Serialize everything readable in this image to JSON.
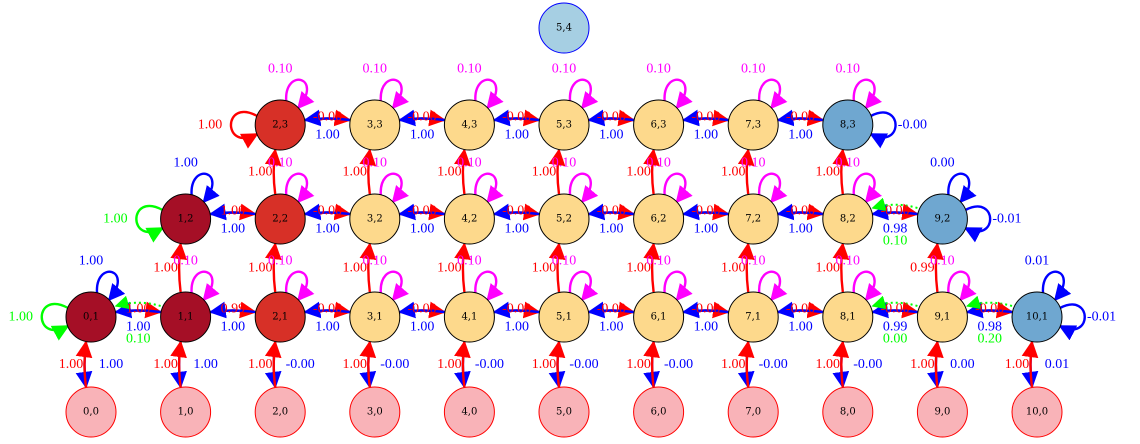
{
  "colors": {
    "dark_red": "#a50f26",
    "red": "#d73027",
    "orange": "#fdd98c",
    "pink": "#f9b3b8",
    "blue": "#6fa7d0",
    "light_blue": "#a6cfe3",
    "edge_red": "#ff0000",
    "edge_blue": "#0000ff",
    "edge_green": "#00ff00",
    "edge_magenta": "#ff00ff"
  },
  "nodes": [
    {
      "id": "5,4",
      "label": "5,4",
      "color": "light_blue",
      "stroke": "edge_blue"
    },
    {
      "id": "2,3",
      "label": "2,3",
      "color": "red"
    },
    {
      "id": "3,3",
      "label": "3,3",
      "color": "orange"
    },
    {
      "id": "4,3",
      "label": "4,3",
      "color": "orange"
    },
    {
      "id": "5,3",
      "label": "5,3",
      "color": "orange"
    },
    {
      "id": "6,3",
      "label": "6,3",
      "color": "orange"
    },
    {
      "id": "7,3",
      "label": "7,3",
      "color": "orange"
    },
    {
      "id": "8,3",
      "label": "8,3",
      "color": "blue"
    },
    {
      "id": "1,2",
      "label": "1,2",
      "color": "dark_red"
    },
    {
      "id": "2,2",
      "label": "2,2",
      "color": "red"
    },
    {
      "id": "3,2",
      "label": "3,2",
      "color": "orange"
    },
    {
      "id": "4,2",
      "label": "4,2",
      "color": "orange"
    },
    {
      "id": "5,2",
      "label": "5,2",
      "color": "orange"
    },
    {
      "id": "6,2",
      "label": "6,2",
      "color": "orange"
    },
    {
      "id": "7,2",
      "label": "7,2",
      "color": "orange"
    },
    {
      "id": "8,2",
      "label": "8,2",
      "color": "orange"
    },
    {
      "id": "9,2",
      "label": "9,2",
      "color": "blue"
    },
    {
      "id": "0,1",
      "label": "0,1",
      "color": "dark_red"
    },
    {
      "id": "1,1",
      "label": "1,1",
      "color": "dark_red"
    },
    {
      "id": "2,1",
      "label": "2,1",
      "color": "red"
    },
    {
      "id": "3,1",
      "label": "3,1",
      "color": "orange"
    },
    {
      "id": "4,1",
      "label": "4,1",
      "color": "orange"
    },
    {
      "id": "5,1",
      "label": "5,1",
      "color": "orange"
    },
    {
      "id": "6,1",
      "label": "6,1",
      "color": "orange"
    },
    {
      "id": "7,1",
      "label": "7,1",
      "color": "orange"
    },
    {
      "id": "8,1",
      "label": "8,1",
      "color": "orange"
    },
    {
      "id": "9,1",
      "label": "9,1",
      "color": "orange"
    },
    {
      "id": "10,1",
      "label": "10,1",
      "color": "blue"
    },
    {
      "id": "0,0",
      "label": "0,0",
      "color": "pink",
      "stroke": "edge_red"
    },
    {
      "id": "1,0",
      "label": "1,0",
      "color": "pink",
      "stroke": "edge_red"
    },
    {
      "id": "2,0",
      "label": "2,0",
      "color": "pink",
      "stroke": "edge_red"
    },
    {
      "id": "3,0",
      "label": "3,0",
      "color": "pink",
      "stroke": "edge_red"
    },
    {
      "id": "4,0",
      "label": "4,0",
      "color": "pink",
      "stroke": "edge_red"
    },
    {
      "id": "5,0",
      "label": "5,0",
      "color": "pink",
      "stroke": "edge_red"
    },
    {
      "id": "6,0",
      "label": "6,0",
      "color": "pink",
      "stroke": "edge_red"
    },
    {
      "id": "7,0",
      "label": "7,0",
      "color": "pink",
      "stroke": "edge_red"
    },
    {
      "id": "8,0",
      "label": "8,0",
      "color": "pink",
      "stroke": "edge_red"
    },
    {
      "id": "9,0",
      "label": "9,0",
      "color": "pink",
      "stroke": "edge_red"
    },
    {
      "id": "10,0",
      "label": "10,0",
      "color": "pink",
      "stroke": "edge_red"
    }
  ],
  "edges": [
    {
      "from": "2,3",
      "to": "3,3",
      "label": "-0.00",
      "color": "edge_red"
    },
    {
      "from": "3,3",
      "to": "4,3",
      "label": "-0.00",
      "color": "edge_red"
    },
    {
      "from": "4,3",
      "to": "5,3",
      "label": "-0.00",
      "color": "edge_red"
    },
    {
      "from": "5,3",
      "to": "6,3",
      "label": "-0.00",
      "color": "edge_red"
    },
    {
      "from": "6,3",
      "to": "7,3",
      "label": "-0.00",
      "color": "edge_red"
    },
    {
      "from": "7,3",
      "to": "8,3",
      "label": "-0.00",
      "color": "edge_red"
    },
    {
      "from": "3,3",
      "to": "2,3",
      "label": "1.00",
      "color": "edge_blue"
    },
    {
      "from": "4,3",
      "to": "3,3",
      "label": "1.00",
      "color": "edge_blue"
    },
    {
      "from": "5,3",
      "to": "4,3",
      "label": "1.00",
      "color": "edge_blue"
    },
    {
      "from": "6,3",
      "to": "5,3",
      "label": "1.00",
      "color": "edge_blue"
    },
    {
      "from": "7,3",
      "to": "6,3",
      "label": "1.00",
      "color": "edge_blue"
    },
    {
      "from": "8,3",
      "to": "7,3",
      "label": "1.00",
      "color": "edge_blue"
    },
    {
      "from": "1,2",
      "to": "2,2",
      "label": "1.00",
      "color": "edge_red"
    },
    {
      "from": "2,2",
      "to": "3,2",
      "label": "-0.00",
      "color": "edge_red"
    },
    {
      "from": "3,2",
      "to": "4,2",
      "label": "-0.00",
      "color": "edge_red"
    },
    {
      "from": "4,2",
      "to": "5,2",
      "label": "-0.00",
      "color": "edge_red"
    },
    {
      "from": "5,2",
      "to": "6,2",
      "label": "-0.00",
      "color": "edge_red"
    },
    {
      "from": "6,2",
      "to": "7,2",
      "label": "-0.00",
      "color": "edge_red"
    },
    {
      "from": "7,2",
      "to": "8,2",
      "label": "-0.00",
      "color": "edge_red"
    },
    {
      "from": "8,2",
      "to": "9,2",
      "label": "-0.00",
      "color": "edge_red"
    },
    {
      "from": "2,2",
      "to": "1,2",
      "label": "1.00",
      "color": "edge_blue"
    },
    {
      "from": "3,2",
      "to": "2,2",
      "label": "1.00",
      "color": "edge_blue"
    },
    {
      "from": "4,2",
      "to": "3,2",
      "label": "1.00",
      "color": "edge_blue"
    },
    {
      "from": "5,2",
      "to": "4,2",
      "label": "1.00",
      "color": "edge_blue"
    },
    {
      "from": "6,2",
      "to": "5,2",
      "label": "1.00",
      "color": "edge_blue"
    },
    {
      "from": "7,2",
      "to": "6,2",
      "label": "1.00",
      "color": "edge_blue"
    },
    {
      "from": "8,2",
      "to": "7,2",
      "label": "1.00",
      "color": "edge_blue"
    },
    {
      "from": "9,2",
      "to": "8,2",
      "label": "0.98",
      "color": "edge_blue"
    },
    {
      "from": "0,1",
      "to": "1,1",
      "label": "1.00",
      "color": "edge_red"
    },
    {
      "from": "1,1",
      "to": "2,1",
      "label": "0.99",
      "color": "edge_red"
    },
    {
      "from": "2,1",
      "to": "3,1",
      "label": "-0.00",
      "color": "edge_red"
    },
    {
      "from": "3,1",
      "to": "4,1",
      "label": "-0.00",
      "color": "edge_red"
    },
    {
      "from": "4,1",
      "to": "5,1",
      "label": "-0.00",
      "color": "edge_red"
    },
    {
      "from": "5,1",
      "to": "6,1",
      "label": "-0.00",
      "color": "edge_red"
    },
    {
      "from": "6,1",
      "to": "7,1",
      "label": "-0.00",
      "color": "edge_red"
    },
    {
      "from": "7,1",
      "to": "8,1",
      "label": "-0.00",
      "color": "edge_red"
    },
    {
      "from": "8,1",
      "to": "9,1",
      "label": "-0.00",
      "color": "edge_red"
    },
    {
      "from": "9,1",
      "to": "10,1",
      "label": "-0.00",
      "color": "edge_red"
    },
    {
      "from": "1,1",
      "to": "0,1",
      "label": "1.00",
      "color": "edge_blue"
    },
    {
      "from": "2,1",
      "to": "1,1",
      "label": "1.00",
      "color": "edge_blue"
    },
    {
      "from": "3,1",
      "to": "2,1",
      "label": "1.00",
      "color": "edge_blue"
    },
    {
      "from": "4,1",
      "to": "3,1",
      "label": "1.00",
      "color": "edge_blue"
    },
    {
      "from": "5,1",
      "to": "4,1",
      "label": "1.00",
      "color": "edge_blue"
    },
    {
      "from": "6,1",
      "to": "5,1",
      "label": "1.00",
      "color": "edge_blue"
    },
    {
      "from": "7,1",
      "to": "6,1",
      "label": "1.00",
      "color": "edge_blue"
    },
    {
      "from": "8,1",
      "to": "7,1",
      "label": "1.00",
      "color": "edge_blue"
    },
    {
      "from": "9,1",
      "to": "8,1",
      "label": "0.99",
      "color": "edge_blue"
    },
    {
      "from": "10,1",
      "to": "9,1",
      "label": "0.98",
      "color": "edge_blue"
    },
    {
      "from": "2,2",
      "to": "2,3",
      "label": "1.00",
      "color": "edge_red"
    },
    {
      "from": "3,2",
      "to": "3,3",
      "label": "1.00",
      "color": "edge_red"
    },
    {
      "from": "4,2",
      "to": "4,3",
      "label": "1.00",
      "color": "edge_red"
    },
    {
      "from": "5,2",
      "to": "5,3",
      "label": "1.00",
      "color": "edge_red"
    },
    {
      "from": "6,2",
      "to": "6,3",
      "label": "1.00",
      "color": "edge_red"
    },
    {
      "from": "7,2",
      "to": "7,3",
      "label": "1.00",
      "color": "edge_red"
    },
    {
      "from": "8,2",
      "to": "8,3",
      "label": "1.00",
      "color": "edge_red"
    },
    {
      "from": "1,1",
      "to": "1,2",
      "label": "1.00",
      "color": "edge_red"
    },
    {
      "from": "2,1",
      "to": "2,2",
      "label": "1.00",
      "color": "edge_red"
    },
    {
      "from": "3,1",
      "to": "3,2",
      "label": "1.00",
      "color": "edge_red"
    },
    {
      "from": "4,1",
      "to": "4,2",
      "label": "1.00",
      "color": "edge_red"
    },
    {
      "from": "5,1",
      "to": "5,2",
      "label": "1.00",
      "color": "edge_red"
    },
    {
      "from": "6,1",
      "to": "6,2",
      "label": "1.00",
      "color": "edge_red"
    },
    {
      "from": "7,1",
      "to": "7,2",
      "label": "1.00",
      "color": "edge_red"
    },
    {
      "from": "8,1",
      "to": "8,2",
      "label": "1.00",
      "color": "edge_red"
    },
    {
      "from": "9,1",
      "to": "9,2",
      "label": "0.99",
      "color": "edge_red"
    },
    {
      "from": "2,1",
      "to": "2,0",
      "label": "-0.00",
      "color": "edge_blue"
    },
    {
      "from": "3,1",
      "to": "3,0",
      "label": "-0.00",
      "color": "edge_blue"
    },
    {
      "from": "4,1",
      "to": "4,0",
      "label": "-0.00",
      "color": "edge_blue"
    },
    {
      "from": "5,1",
      "to": "5,0",
      "label": "-0.00",
      "color": "edge_blue"
    },
    {
      "from": "6,1",
      "to": "6,0",
      "label": "-0.00",
      "color": "edge_blue"
    },
    {
      "from": "7,1",
      "to": "7,0",
      "label": "-0.00",
      "color": "edge_blue"
    },
    {
      "from": "8,1",
      "to": "8,0",
      "label": "-0.00",
      "color": "edge_blue"
    },
    {
      "from": "9,1",
      "to": "9,0",
      "label": "0.00",
      "color": "edge_blue"
    },
    {
      "from": "10,1",
      "to": "10,0",
      "label": "0.01",
      "color": "edge_blue"
    },
    {
      "from": "0,1",
      "to": "0,0",
      "label": "1.00",
      "color": "edge_blue"
    },
    {
      "from": "1,1",
      "to": "1,0",
      "label": "1.00",
      "color": "edge_blue"
    },
    {
      "from": "0,0",
      "to": "0,1",
      "label": "1.00",
      "color": "edge_red"
    },
    {
      "from": "1,0",
      "to": "1,1",
      "label": "1.00",
      "color": "edge_red"
    },
    {
      "from": "2,0",
      "to": "2,1",
      "label": "1.00",
      "color": "edge_red"
    },
    {
      "from": "3,0",
      "to": "3,1",
      "label": "1.00",
      "color": "edge_red"
    },
    {
      "from": "4,0",
      "to": "4,1",
      "label": "1.00",
      "color": "edge_red"
    },
    {
      "from": "5,0",
      "to": "5,1",
      "label": "1.00",
      "color": "edge_red"
    },
    {
      "from": "6,0",
      "to": "6,1",
      "label": "1.00",
      "color": "edge_red"
    },
    {
      "from": "7,0",
      "to": "7,1",
      "label": "1.00",
      "color": "edge_red"
    },
    {
      "from": "8,0",
      "to": "8,1",
      "label": "1.00",
      "color": "edge_red"
    },
    {
      "from": "9,0",
      "to": "9,1",
      "label": "1.00",
      "color": "edge_red"
    },
    {
      "from": "10,0",
      "to": "10,1",
      "label": "1.00",
      "color": "edge_red"
    },
    {
      "from": "1,1",
      "to": "0,1",
      "label": "0.10",
      "color": "edge_green"
    },
    {
      "from": "9,2",
      "to": "8,2",
      "label": "0.10",
      "color": "edge_green"
    },
    {
      "from": "9,1",
      "to": "8,1",
      "label": "0.00",
      "color": "edge_green"
    },
    {
      "from": "10,1",
      "to": "9,1",
      "label": "0.20",
      "color": "edge_green"
    }
  ],
  "self_loops": [
    {
      "node": "2,3",
      "label": "1.00",
      "color": "edge_red",
      "side": "left"
    },
    {
      "node": "1,2",
      "label": "1.00",
      "color": "edge_green",
      "side": "left"
    },
    {
      "node": "0,1",
      "label": "1.00",
      "color": "edge_green",
      "side": "left"
    },
    {
      "node": "8,3",
      "label": "-0.00",
      "color": "edge_blue",
      "side": "right"
    },
    {
      "node": "9,2",
      "label": "-0.01",
      "color": "edge_blue",
      "side": "right"
    },
    {
      "node": "10,1",
      "label": "-0.01",
      "color": "edge_blue",
      "side": "right"
    },
    {
      "node": "2,3",
      "label": "0.10",
      "color": "edge_magenta",
      "side": "top"
    },
    {
      "node": "3,3",
      "label": "0.10",
      "color": "edge_magenta",
      "side": "top"
    },
    {
      "node": "4,3",
      "label": "0.10",
      "color": "edge_magenta",
      "side": "top"
    },
    {
      "node": "5,3",
      "label": "0.10",
      "color": "edge_magenta",
      "side": "top"
    },
    {
      "node": "6,3",
      "label": "0.10",
      "color": "edge_magenta",
      "side": "top"
    },
    {
      "node": "7,3",
      "label": "0.10",
      "color": "edge_magenta",
      "side": "top"
    },
    {
      "node": "8,3",
      "label": "0.10",
      "color": "edge_magenta",
      "side": "top"
    },
    {
      "node": "1,2",
      "label": "1.00",
      "color": "edge_blue",
      "side": "top"
    },
    {
      "node": "2,2",
      "label": "0.10",
      "color": "edge_magenta",
      "side": "top"
    },
    {
      "node": "3,2",
      "label": "0.10",
      "color": "edge_magenta",
      "side": "top"
    },
    {
      "node": "4,2",
      "label": "0.10",
      "color": "edge_magenta",
      "side": "top"
    },
    {
      "node": "5,2",
      "label": "0.10",
      "color": "edge_magenta",
      "side": "top"
    },
    {
      "node": "6,2",
      "label": "0.10",
      "color": "edge_magenta",
      "side": "top"
    },
    {
      "node": "7,2",
      "label": "0.10",
      "color": "edge_magenta",
      "side": "top"
    },
    {
      "node": "8,2",
      "label": "0.10",
      "color": "edge_magenta",
      "side": "top"
    },
    {
      "node": "9,2",
      "label": "0.00",
      "color": "edge_blue",
      "side": "top"
    },
    {
      "node": "0,1",
      "label": "1.00",
      "color": "edge_blue",
      "side": "top"
    },
    {
      "node": "1,1",
      "label": "0.10",
      "color": "edge_magenta",
      "side": "top"
    },
    {
      "node": "2,1",
      "label": "0.10",
      "color": "edge_magenta",
      "side": "top"
    },
    {
      "node": "3,1",
      "label": "0.10",
      "color": "edge_magenta",
      "side": "top"
    },
    {
      "node": "4,1",
      "label": "0.10",
      "color": "edge_magenta",
      "side": "top"
    },
    {
      "node": "5,1",
      "label": "0.10",
      "color": "edge_magenta",
      "side": "top"
    },
    {
      "node": "6,1",
      "label": "0.10",
      "color": "edge_magenta",
      "side": "top"
    },
    {
      "node": "7,1",
      "label": "0.10",
      "color": "edge_magenta",
      "side": "top"
    },
    {
      "node": "8,1",
      "label": "0.10",
      "color": "edge_magenta",
      "side": "top"
    },
    {
      "node": "9,1",
      "label": "0.10",
      "color": "edge_magenta",
      "side": "top"
    },
    {
      "node": "10,1",
      "label": "0.01",
      "color": "edge_blue",
      "side": "top"
    }
  ]
}
